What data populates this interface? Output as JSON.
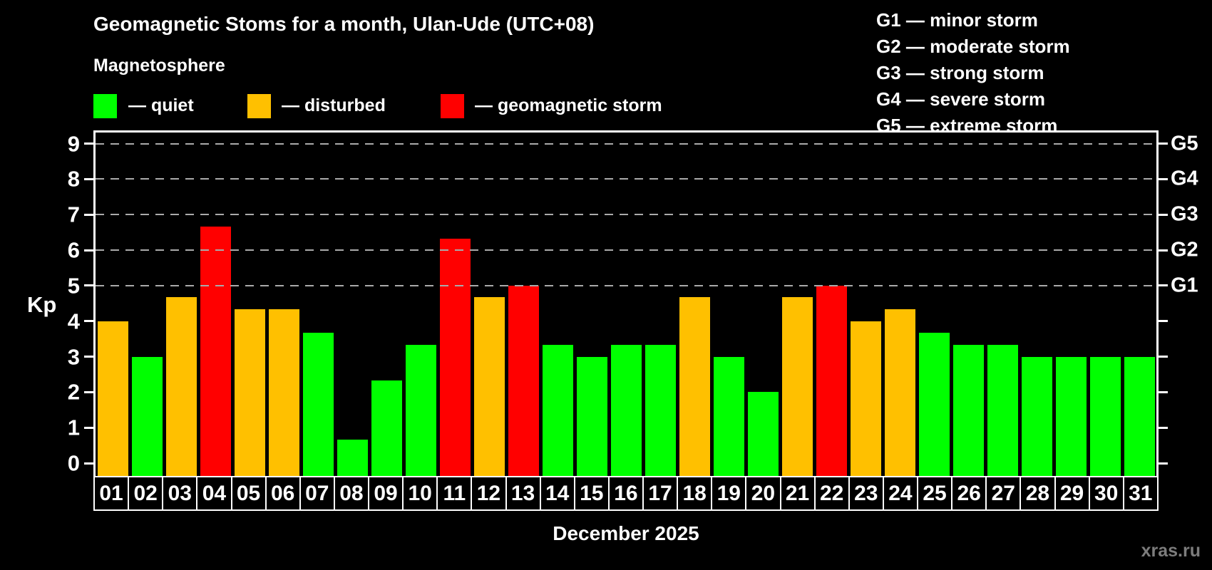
{
  "title": "Geomagnetic Stoms for a month, Ulan-Ude (UTC+08)",
  "subtitle": "Magnetosphere",
  "legend": {
    "quiet_label": "— quiet",
    "disturbed_label": "— disturbed",
    "storm_label": "— geomagnetic storm"
  },
  "g_legend": [
    "G1 — minor storm",
    "G2 — moderate storm",
    "G3 — strong storm",
    "G4 — severe storm",
    "G5 — extreme storm"
  ],
  "colors": {
    "quiet": "#00ff00",
    "disturbed": "#ffc000",
    "storm": "#ff0000",
    "background": "#000000",
    "frame": "#ffffff",
    "gridline": "#aaaaaa",
    "watermark_text": "#7c7c7c"
  },
  "axis": {
    "y_label": "Kp",
    "y_ticks": [
      0,
      1,
      2,
      3,
      4,
      5,
      6,
      7,
      8,
      9
    ],
    "g_ticks": [
      "G1",
      "G2",
      "G3",
      "G4",
      "G5"
    ]
  },
  "x_label": "December 2025",
  "watermark": "xras.ru",
  "chart_data": {
    "type": "bar",
    "title": "Geomagnetic Stoms for a month, Ulan-Ude (UTC+08)",
    "xlabel": "December 2025",
    "ylabel": "Kp",
    "ylim": [
      0,
      9
    ],
    "grid": "dashed horizontal at Kp 5-9 (G1-G5)",
    "grid_levels": [
      5,
      6,
      7,
      8,
      9
    ],
    "legend_position": "top",
    "categories": [
      "01",
      "02",
      "03",
      "04",
      "05",
      "06",
      "07",
      "08",
      "09",
      "10",
      "11",
      "12",
      "13",
      "14",
      "15",
      "16",
      "17",
      "18",
      "19",
      "20",
      "21",
      "22",
      "23",
      "24",
      "25",
      "26",
      "27",
      "28",
      "29",
      "30",
      "31"
    ],
    "values": [
      4.0,
      3.0,
      4.67,
      6.67,
      4.33,
      4.33,
      3.67,
      0.67,
      2.33,
      3.33,
      6.33,
      4.67,
      5.0,
      3.33,
      3.0,
      3.33,
      3.33,
      4.67,
      3.0,
      2.0,
      4.67,
      5.0,
      4.0,
      4.33,
      3.67,
      3.33,
      3.33,
      3.0,
      3.0,
      3.0,
      3.0
    ],
    "statuses": [
      "disturbed",
      "quiet",
      "disturbed",
      "storm",
      "disturbed",
      "disturbed",
      "quiet",
      "quiet",
      "quiet",
      "quiet",
      "storm",
      "disturbed",
      "storm",
      "quiet",
      "quiet",
      "quiet",
      "quiet",
      "disturbed",
      "quiet",
      "quiet",
      "disturbed",
      "storm",
      "disturbed",
      "disturbed",
      "quiet",
      "quiet",
      "quiet",
      "quiet",
      "quiet",
      "quiet",
      "quiet"
    ]
  }
}
